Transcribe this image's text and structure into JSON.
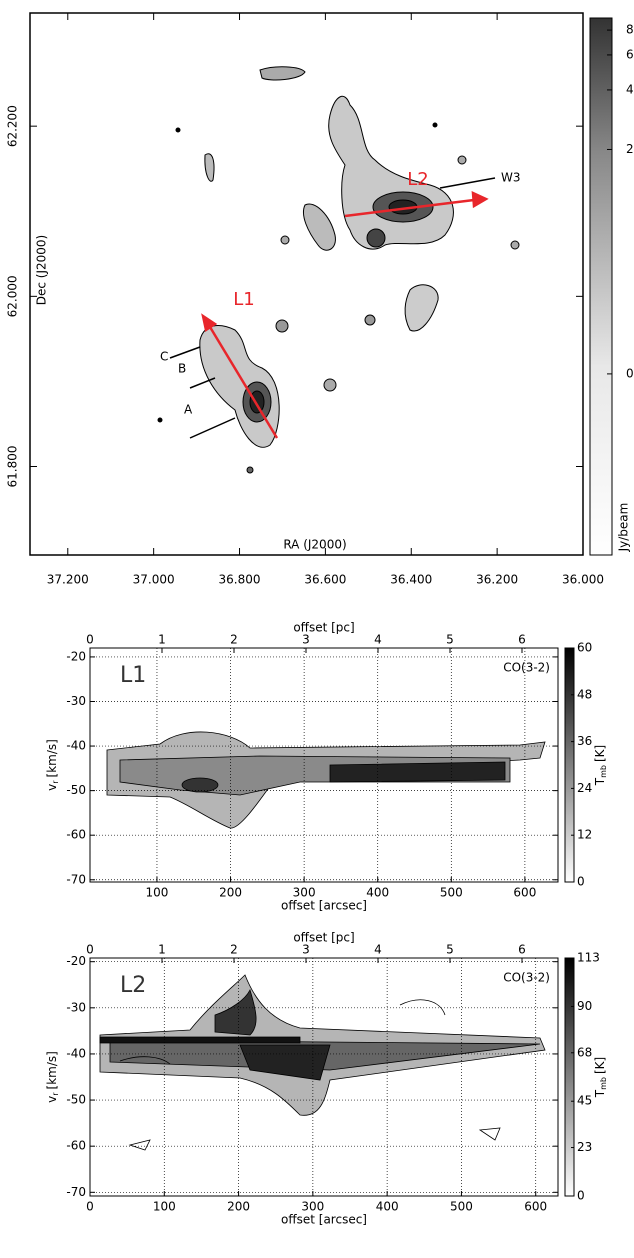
{
  "chart_data": [
    {
      "type": "map",
      "xlabel": "RA (J2000)",
      "ylabel": "Dec (J2000)",
      "xlim": [
        37.288,
        36.0
      ],
      "ylim": [
        61.696,
        62.333
      ],
      "xticks": [
        {
          "value": 37.2,
          "label": "37.200"
        },
        {
          "value": 37.0,
          "label": "37.000"
        },
        {
          "value": 36.8,
          "label": "36.800"
        },
        {
          "value": 36.6,
          "label": "36.600"
        },
        {
          "value": 36.4,
          "label": "36.400"
        },
        {
          "value": 36.2,
          "label": "36.200"
        },
        {
          "value": 36.0,
          "label": "36.000"
        }
      ],
      "yticks": [
        {
          "value": 62.2,
          "label": "62.200"
        },
        {
          "value": 62.0,
          "label": "62.000"
        },
        {
          "value": 61.8,
          "label": "61.800"
        }
      ],
      "colorbar": {
        "label": "Jy/beam",
        "lim": [
          -1.2,
          9.2
        ],
        "scale": "asinh",
        "asinh_width": 0.3,
        "ticks": [
          8,
          6,
          4,
          2,
          0
        ]
      },
      "annotations": [
        "L1",
        "L2",
        "W3",
        "A",
        "B",
        "C"
      ]
    },
    {
      "type": "pv",
      "label": "L1",
      "line": "CO(3-2)",
      "xlabel": "offset [arcsec]",
      "x2label": "offset [pc]",
      "ylabel": {
        "main": "v",
        "sub": "r",
        "rest": "[km/s]"
      },
      "xlim": [
        9,
        645
      ],
      "x2lim": [
        0,
        6.5
      ],
      "ylim": [
        -70.5,
        -18
      ],
      "xticks": [
        100,
        200,
        300,
        400,
        500,
        600
      ],
      "x2ticks": [
        0,
        1,
        2,
        3,
        4,
        5,
        6
      ],
      "yticks": [
        -70,
        -60,
        -50,
        -40,
        -30,
        -20
      ],
      "grid": true,
      "colorbar": {
        "label": {
          "main": "T",
          "sub": "mb",
          "rest": "[K]"
        },
        "lim": [
          0,
          60
        ],
        "ticks": [
          0,
          12,
          24,
          36,
          48,
          60
        ]
      }
    },
    {
      "type": "pv",
      "label": "L2",
      "line": "CO(3-2)",
      "xlabel": "offset [arcsec]",
      "x2label": "offset [pc]",
      "ylabel": {
        "main": "v",
        "sub": "r",
        "rest": "[km/s]"
      },
      "xlim": [
        0,
        630
      ],
      "x2lim": [
        0,
        6.5
      ],
      "ylim": [
        -70.8,
        -19.2
      ],
      "xticks": [
        0,
        100,
        200,
        300,
        400,
        500,
        600
      ],
      "x2ticks": [
        0,
        1,
        2,
        3,
        4,
        5,
        6
      ],
      "yticks": [
        -70,
        -60,
        -50,
        -40,
        -30,
        -20
      ],
      "grid": true,
      "colorbar": {
        "label": {
          "main": "T",
          "sub": "mb",
          "rest": "[K]"
        },
        "lim": [
          0,
          113
        ],
        "ticks": [
          0,
          23,
          45,
          68,
          90,
          113
        ]
      }
    }
  ]
}
